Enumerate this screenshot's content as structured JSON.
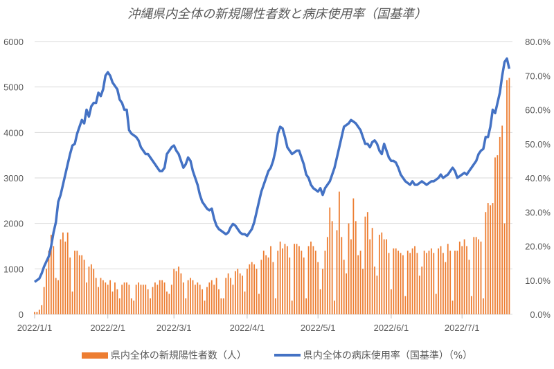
{
  "chart_data": {
    "type": "bar+line",
    "title": "沖縄県内全体の新規陽性者数と病床使用率（国基準）",
    "x_tick_labels": [
      "2022/1/1",
      "2022/2/1",
      "2022/3/1",
      "2022/4/1",
      "2022/5/1",
      "2022/6/1",
      "2022/7/1"
    ],
    "y_left": {
      "ylim": [
        0,
        6000
      ],
      "ticks": [
        "0",
        "1000",
        "2000",
        "3000",
        "4000",
        "5000",
        "6000"
      ]
    },
    "y_right": {
      "ylim": [
        0,
        80
      ],
      "ticks": [
        "0.0%",
        "10.0%",
        "20.0%",
        "30.0%",
        "40.0%",
        "50.0%",
        "60.0%",
        "70.0%",
        "80.0%"
      ]
    },
    "grid": true,
    "legend_position": "bottom",
    "series": [
      {
        "name": "県内全体の新規陽性者数（人）",
        "type": "bar",
        "axis": "left",
        "color": "#ED7D31",
        "values": [
          50,
          50,
          100,
          200,
          600,
          1000,
          1400,
          1750,
          1500,
          800,
          750,
          1650,
          1800,
          1600,
          1800,
          1250,
          500,
          1400,
          1400,
          1300,
          1300,
          1200,
          700,
          1050,
          1100,
          1000,
          800,
          600,
          800,
          750,
          700,
          650,
          750,
          500,
          700,
          550,
          350,
          650,
          700,
          700,
          650,
          350,
          300,
          650,
          700,
          650,
          650,
          650,
          550,
          350,
          600,
          700,
          650,
          750,
          750,
          700,
          500,
          450,
          650,
          1000,
          950,
          1050,
          900,
          700,
          350,
          750,
          800,
          750,
          650,
          700,
          650,
          550,
          300,
          600,
          700,
          750,
          650,
          800,
          550,
          350,
          350,
          800,
          900,
          800,
          650,
          950,
          1000,
          900,
          850,
          500,
          1000,
          1100,
          1150,
          1100,
          1000,
          450,
          1200,
          1400,
          1300,
          1250,
          1500,
          1150,
          350,
          1400,
          1600,
          1450,
          1550,
          1500,
          1250,
          300,
          1550,
          1550,
          1500,
          1400,
          1250,
          350,
          1500,
          1600,
          1500,
          1400,
          1150,
          550,
          1000,
          1400,
          1700,
          2350,
          2050,
          300,
          1850,
          2700,
          1700,
          1200,
          900,
          2000,
          1650,
          2550,
          2050,
          1300,
          1400,
          1000,
          2150,
          2250,
          1650,
          1900,
          1050,
          850,
          1750,
          1800,
          1650,
          1650,
          1350,
          550,
          1450,
          1450,
          1400,
          1350,
          1300,
          400,
          1400,
          1350,
          1450,
          1500,
          1350,
          850,
          1050,
          1400,
          1350,
          1400,
          1450,
          1350,
          450,
          1450,
          1500,
          1350,
          1150,
          1550,
          1400,
          300,
          1400,
          1400,
          1600,
          1500,
          1650,
          1500,
          1200,
          400,
          1700,
          1700,
          1650,
          1600,
          350,
          2250,
          2450,
          2400,
          2450,
          3450,
          3500,
          3900,
          4150,
          2000,
          5150,
          5200
        ]
      },
      {
        "name": "県内全体の病床使用率（国基準）（%）",
        "type": "line",
        "axis": "right",
        "color": "#4472C4",
        "values": [
          9.5,
          10,
          10.5,
          12,
          14,
          15.5,
          17,
          20,
          24,
          27,
          33,
          35,
          38,
          41,
          44,
          47,
          49.5,
          50,
          53,
          55,
          57,
          56,
          60,
          58,
          61,
          62,
          62,
          65,
          64,
          66,
          70,
          71,
          70,
          68,
          67,
          66,
          63,
          62,
          60,
          60,
          54,
          53,
          52.5,
          52,
          51,
          49,
          48,
          47,
          47,
          46,
          45,
          44,
          43,
          42,
          42,
          43,
          47,
          48,
          49,
          49.5,
          48,
          47,
          45,
          43,
          44,
          46,
          45,
          42,
          40,
          38,
          35,
          33,
          32,
          31,
          30.5,
          31,
          28,
          26,
          25,
          24.5,
          24,
          23.5,
          24,
          25.5,
          26.5,
          26,
          25,
          24,
          23.5,
          23.5,
          23,
          24,
          25,
          27,
          30,
          33,
          36,
          38,
          40,
          42,
          43,
          45,
          48,
          53,
          55,
          54.5,
          52,
          49,
          48,
          47,
          47.5,
          48,
          48,
          46,
          44,
          41,
          40,
          38,
          37,
          36.5,
          36,
          37,
          35,
          37,
          38,
          39,
          41,
          43,
          46,
          49,
          52,
          55,
          55.5,
          56,
          57,
          56.5,
          56,
          55,
          54,
          52,
          50,
          50,
          49,
          50.5,
          51,
          50,
          48,
          47,
          50,
          48,
          46,
          45,
          45,
          44.5,
          43,
          41,
          40,
          39,
          38.5,
          38,
          39,
          38,
          38,
          38.5,
          39,
          38.5,
          38,
          38.5,
          39,
          39,
          39.5,
          40,
          41,
          40,
          40.5,
          41,
          42,
          43,
          42,
          40,
          40.5,
          41,
          41.5,
          41,
          42,
          43,
          44,
          45,
          47,
          48,
          48.5,
          52,
          52,
          55,
          60,
          59,
          62,
          65,
          70,
          74,
          75,
          72
        ]
      }
    ]
  }
}
